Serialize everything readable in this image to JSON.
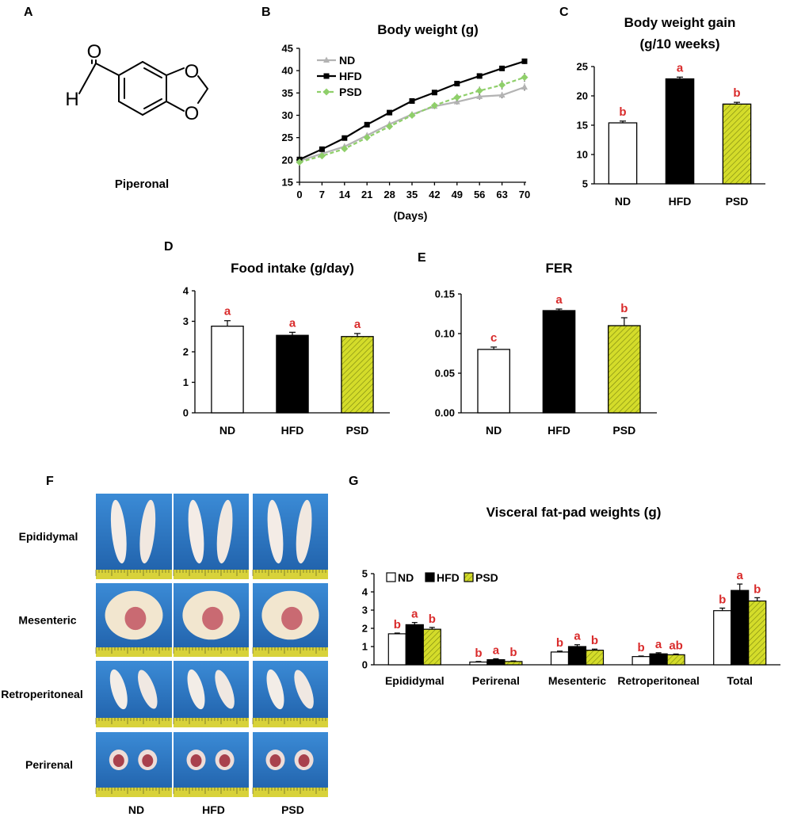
{
  "panel_labels": [
    "A",
    "B",
    "C",
    "D",
    "E",
    "F",
    "G"
  ],
  "colors": {
    "nd": "#ffffff",
    "hfd": "#000000",
    "psd": "#d4dc2a",
    "nd_line": "#b3b3b3",
    "psd_line": "#8fcf6a",
    "significance": "#d92b2b",
    "photo_background": "#2a78c5"
  },
  "structure": {
    "compound_name": "Piperonal",
    "atoms": [
      "O",
      "H",
      "O",
      "O"
    ]
  },
  "photos": {
    "rows": [
      "Epididymal",
      "Mesenteric",
      "Retroperitoneal",
      "Perirenal"
    ],
    "columns": [
      "ND",
      "HFD",
      "PSD"
    ]
  },
  "chart_data": [
    {
      "id": "B",
      "type": "line",
      "title": "Body weight (g)",
      "xlabel": "(Days)",
      "ylabel": "",
      "x": [
        0,
        7,
        14,
        21,
        28,
        35,
        42,
        49,
        56,
        63,
        70
      ],
      "xticks": [
        "0",
        "7",
        "14",
        "21",
        "28",
        "35",
        "42",
        "49",
        "56",
        "63",
        "70"
      ],
      "ylim": [
        15,
        45
      ],
      "yticks": [
        "15",
        "20",
        "25",
        "30",
        "35",
        "40",
        "45"
      ],
      "legend": "top-left",
      "series": [
        {
          "name": "ND",
          "values": [
            19.8,
            21.4,
            23.0,
            25.5,
            28.0,
            30.2,
            32.0,
            33.0,
            34.2,
            34.5,
            36.3
          ],
          "errors": [
            0.3,
            0.3,
            0.4,
            0.4,
            0.5,
            0.5,
            0.6,
            0.6,
            0.7,
            0.7,
            0.8
          ]
        },
        {
          "name": "HFD",
          "values": [
            20.1,
            22.4,
            24.9,
            27.9,
            30.6,
            33.2,
            35.1,
            37.1,
            38.8,
            40.5,
            42.1
          ],
          "errors": [
            0.2,
            0.3,
            0.3,
            0.3,
            0.3,
            0.4,
            0.4,
            0.5,
            0.5,
            0.5,
            0.6
          ]
        },
        {
          "name": "PSD",
          "values": [
            19.5,
            20.9,
            22.5,
            25.0,
            27.5,
            30.0,
            32.2,
            34.0,
            35.5,
            36.8,
            38.5
          ],
          "errors": [
            0.3,
            0.3,
            0.4,
            0.4,
            0.5,
            0.6,
            0.7,
            0.8,
            0.9,
            1.0,
            1.0
          ]
        }
      ]
    },
    {
      "id": "C",
      "type": "bar",
      "title": "Body weight gain",
      "subtitle": "(g/10 weeks)",
      "categories": [
        "ND",
        "HFD",
        "PSD"
      ],
      "values": [
        15.4,
        22.9,
        18.6
      ],
      "errors": [
        0.3,
        0.3,
        0.3
      ],
      "significance": [
        "b",
        "a",
        "b"
      ],
      "ylim": [
        5,
        25
      ],
      "yticks": [
        "5",
        "10",
        "15",
        "20",
        "25"
      ]
    },
    {
      "id": "D",
      "type": "bar",
      "title": "Food intake (g/day)",
      "categories": [
        "ND",
        "HFD",
        "PSD"
      ],
      "values": [
        2.84,
        2.54,
        2.5
      ],
      "errors": [
        0.18,
        0.1,
        0.1
      ],
      "significance": [
        "a",
        "a",
        "a"
      ],
      "ylim": [
        0,
        4
      ],
      "yticks": [
        "0",
        "1",
        "2",
        "3",
        "4"
      ]
    },
    {
      "id": "E",
      "type": "bar",
      "title": "FER",
      "categories": [
        "ND",
        "HFD",
        "PSD"
      ],
      "values": [
        0.08,
        0.129,
        0.11
      ],
      "errors": [
        0.003,
        0.002,
        0.01
      ],
      "significance": [
        "c",
        "a",
        "b"
      ],
      "ylim": [
        0,
        0.15
      ],
      "yticks": [
        "0.00",
        "0.05",
        "0.10",
        "0.15"
      ]
    },
    {
      "id": "G",
      "type": "bar",
      "title": "Visceral fat-pad weights (g)",
      "categories": [
        "Epididymal",
        "Perirenal",
        "Mesenteric",
        "Retroperitoneal",
        "Total"
      ],
      "ylim": [
        0,
        5
      ],
      "yticks": [
        "0",
        "1",
        "2",
        "3",
        "4",
        "5"
      ],
      "legend": "top-left",
      "series": [
        {
          "name": "ND",
          "values": [
            1.7,
            0.15,
            0.7,
            0.45,
            2.97
          ],
          "errors": [
            0.04,
            0.03,
            0.05,
            0.03,
            0.14
          ],
          "significance": [
            "b",
            "b",
            "b",
            "b",
            "b"
          ]
        },
        {
          "name": "HFD",
          "values": [
            2.2,
            0.28,
            1.0,
            0.6,
            4.08
          ],
          "errors": [
            0.12,
            0.05,
            0.1,
            0.06,
            0.35
          ],
          "significance": [
            "a",
            "a",
            "a",
            "a",
            "a"
          ]
        },
        {
          "name": "PSD",
          "values": [
            1.95,
            0.18,
            0.8,
            0.55,
            3.5
          ],
          "errors": [
            0.1,
            0.03,
            0.06,
            0.04,
            0.18
          ],
          "significance": [
            "b",
            "b",
            "b",
            "ab",
            "b"
          ]
        }
      ]
    }
  ]
}
